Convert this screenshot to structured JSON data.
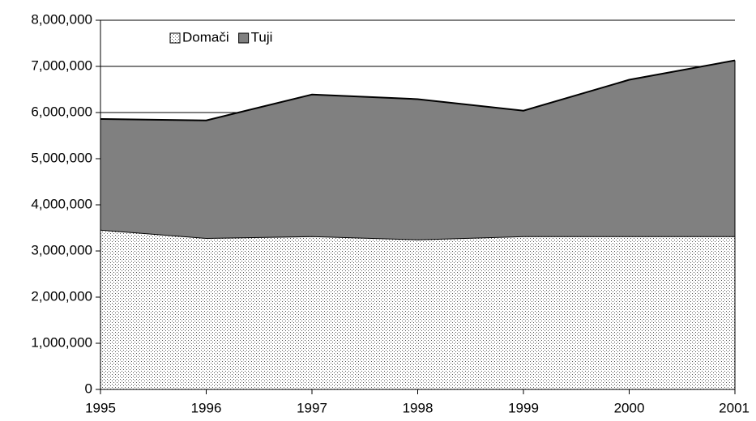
{
  "chart_data": {
    "type": "stacked_area",
    "categories": [
      "1995",
      "1996",
      "1997",
      "1998",
      "1999",
      "2000",
      "2001"
    ],
    "series": [
      {
        "name": "Domači",
        "color": "#ffffff",
        "values": [
          3460000,
          3280000,
          3320000,
          3250000,
          3320000,
          3320000,
          3320000
        ]
      },
      {
        "name": "Tuji",
        "color": "#808080",
        "values": [
          2400000,
          2550000,
          3070000,
          3040000,
          2720000,
          3390000,
          3810000
        ]
      }
    ],
    "ylim": [
      0,
      8000000
    ],
    "yticks": [
      0,
      {
        "value": 1000000,
        "label": "1,000,000"
      },
      {
        "value": 2000000,
        "label": "2,000,000"
      },
      {
        "value": 3000000,
        "label": "3,000,000"
      },
      {
        "value": 4000000,
        "label": "4,000,000"
      },
      {
        "value": 5000000,
        "label": "5,000,000"
      },
      {
        "value": 6000000,
        "label": "6,000,000"
      },
      {
        "value": 7000000,
        "label": "7,000,000"
      },
      {
        "value": 8000000,
        "label": "8,000,000"
      }
    ],
    "grid": true,
    "legend": "top-left"
  }
}
